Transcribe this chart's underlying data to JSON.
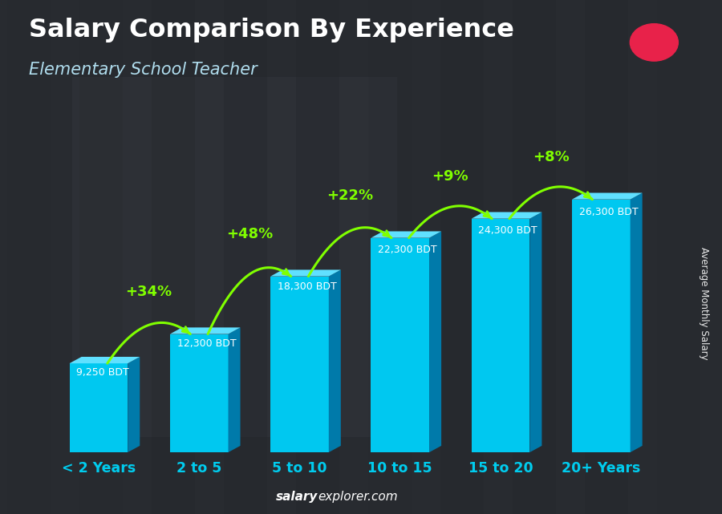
{
  "title": "Salary Comparison By Experience",
  "subtitle": "Elementary School Teacher",
  "categories": [
    "< 2 Years",
    "2 to 5",
    "5 to 10",
    "10 to 15",
    "15 to 20",
    "20+ Years"
  ],
  "values": [
    9250,
    12300,
    18300,
    22300,
    24300,
    26300
  ],
  "value_labels": [
    "9,250 BDT",
    "12,300 BDT",
    "18,300 BDT",
    "22,300 BDT",
    "24,300 BDT",
    "26,300 BDT"
  ],
  "pct_changes": [
    null,
    "+34%",
    "+48%",
    "+22%",
    "+9%",
    "+8%"
  ],
  "bar_face_color": "#00c8f0",
  "bar_top_color": "#60e0ff",
  "bar_side_color": "#007aaa",
  "green_color": "#80ff00",
  "title_color": "#ffffff",
  "subtitle_color": "#b0ddee",
  "tick_color": "#00ccee",
  "ylabel_text": "Average Monthly Salary",
  "footer_bold": "salary",
  "footer_normal": "explorer.com",
  "flag_bg": "#2d6a2d",
  "flag_circle": "#e8224a",
  "ylim_max": 31000,
  "bg_color": "#4a4a52"
}
